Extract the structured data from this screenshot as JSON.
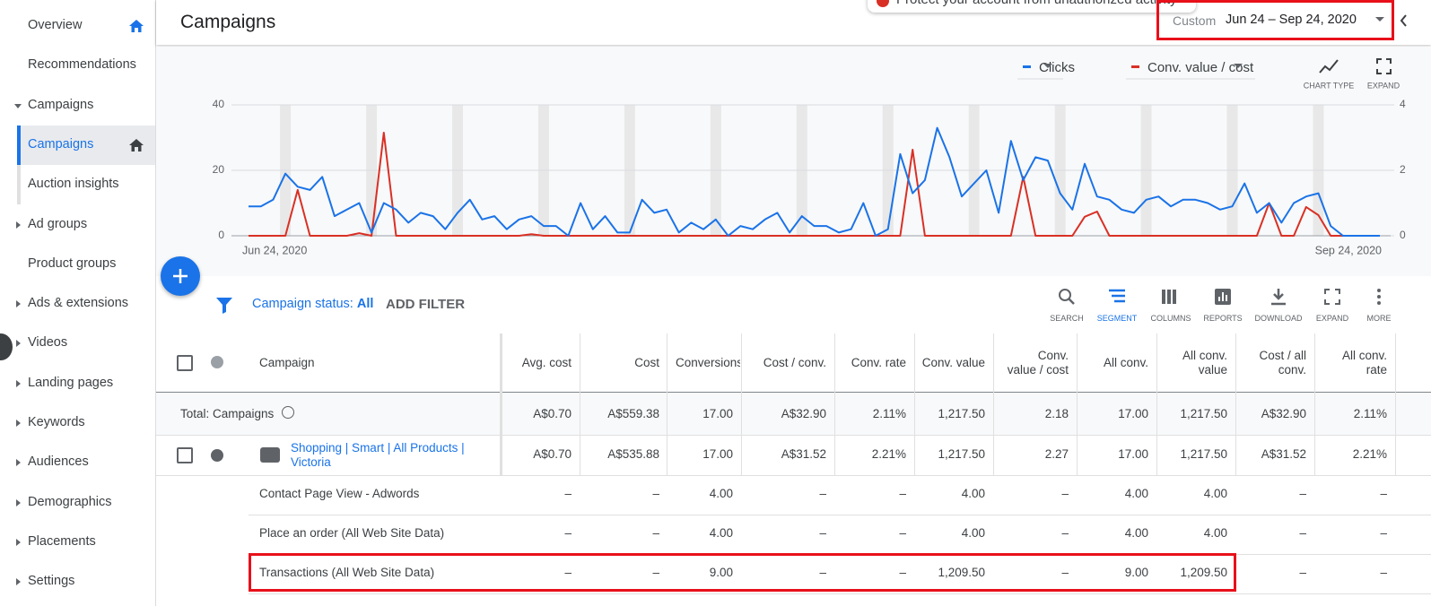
{
  "sidebar": {
    "items": [
      "Overview",
      "Recommendations",
      "Campaigns",
      "Campaigns",
      "Auction insights",
      "Ad groups",
      "Product groups",
      "Ads & extensions",
      "Videos",
      "Landing pages",
      "Keywords",
      "Audiences",
      "Demographics",
      "Placements",
      "Settings"
    ]
  },
  "header": {
    "title": "Campaigns",
    "notification": "Protect your account from unauthorized activity",
    "date_prefix": "Custom",
    "date_range": "Jun 24 – Sep 24, 2020"
  },
  "chart_controls": {
    "chart_type": "CHART TYPE",
    "expand": "EXPAND"
  },
  "chart_data": {
    "type": "line",
    "categories": [
      "Jun 24, 2020",
      null,
      null,
      null,
      null,
      null,
      null,
      null,
      null,
      null,
      null,
      null,
      null,
      null,
      null,
      null,
      null,
      null,
      null,
      null,
      null,
      null,
      null,
      null,
      null,
      null,
      null,
      null,
      null,
      null,
      null,
      null,
      null,
      null,
      null,
      null,
      null,
      null,
      null,
      null,
      null,
      null,
      null,
      null,
      null,
      null,
      null,
      null,
      null,
      null,
      null,
      null,
      null,
      null,
      null,
      null,
      null,
      null,
      null,
      null,
      null,
      null,
      null,
      null,
      null,
      null,
      null,
      null,
      null,
      null,
      null,
      null,
      null,
      null,
      null,
      null,
      null,
      null,
      null,
      null,
      null,
      null,
      null,
      null,
      null,
      null,
      null,
      null,
      null,
      null,
      null,
      null,
      "Sep 24, 2020"
    ],
    "series": [
      {
        "name": "Clicks",
        "color": "#1a73e8",
        "values": [
          9,
          9,
          11,
          19,
          15,
          14,
          18,
          6,
          8,
          10,
          1,
          10,
          8,
          4,
          7,
          6,
          2,
          7,
          11,
          5,
          6,
          2,
          5,
          6,
          3,
          3,
          0,
          10,
          2,
          6,
          1,
          1,
          11,
          7,
          8,
          1,
          4,
          2,
          5,
          0,
          3,
          2,
          5,
          7,
          1,
          6,
          3,
          3,
          1,
          2,
          10,
          0,
          2,
          25,
          13,
          17,
          33,
          24,
          12,
          16,
          20,
          7,
          29,
          17,
          24,
          23,
          13,
          8,
          22,
          12,
          11,
          8,
          7,
          11,
          12,
          9,
          11,
          11,
          10,
          8,
          9,
          16,
          7,
          10,
          4,
          10,
          12,
          13,
          3,
          0,
          0,
          0,
          0
        ]
      },
      {
        "name": "Conv. value / cost",
        "color": "#d93025",
        "axis": "y2",
        "values": [
          0,
          0,
          0,
          0,
          1.4,
          0,
          0,
          0,
          0,
          0.08,
          0,
          3.15,
          0,
          0,
          0,
          0,
          0,
          0,
          0,
          0,
          0,
          0,
          0,
          0.05,
          0,
          0,
          0,
          0,
          0,
          0,
          0,
          0,
          0,
          0,
          0,
          0,
          0,
          0,
          0,
          0,
          0,
          0,
          0,
          0,
          0,
          0,
          0,
          0,
          0,
          0,
          0,
          0,
          0,
          0,
          2.63,
          0,
          0,
          0,
          0,
          0,
          0,
          0,
          0,
          1.8,
          0,
          0,
          0,
          0,
          0.58,
          0.74,
          0,
          0,
          0,
          0,
          0,
          0,
          0,
          0,
          0,
          0,
          0,
          0,
          0,
          1.0,
          0,
          0,
          0.88,
          0.63,
          0,
          0,
          0,
          0,
          0
        ]
      }
    ],
    "ylim": [
      0,
      40
    ],
    "yticks": [
      0,
      20,
      40
    ],
    "y2lim": [
      0,
      4
    ],
    "y2ticks": [
      0,
      2,
      4
    ],
    "grid": true
  },
  "toolbar": {
    "status_label": "Campaign status:",
    "status_value": "All",
    "add_filter": "ADD FILTER",
    "actions": [
      "SEARCH",
      "SEGMENT",
      "COLUMNS",
      "REPORTS",
      "DOWNLOAD",
      "EXPAND",
      "MORE"
    ]
  },
  "table": {
    "columns": [
      "Campaign",
      "Avg. cost",
      "Cost",
      "Conversions",
      "Cost / conv.",
      "Conv. rate",
      "Conv. value",
      "Conv. value / cost",
      "All conv.",
      "All conv. value",
      "Cost / all conv.",
      "All conv. rate"
    ],
    "total": {
      "label": "Total: Campaigns",
      "values": [
        "A$0.70",
        "A$559.38",
        "17.00",
        "A$32.90",
        "2.11%",
        "1,217.50",
        "2.18",
        "17.00",
        "1,217.50",
        "A$32.90",
        "2.11%"
      ]
    },
    "rows": [
      {
        "name": "Shopping | Smart | All Products | Victoria",
        "values": [
          "A$0.70",
          "A$535.88",
          "17.00",
          "A$31.52",
          "2.21%",
          "1,217.50",
          "2.27",
          "17.00",
          "1,217.50",
          "A$31.52",
          "2.21%"
        ]
      },
      {
        "name": "Contact Page View - Adwords",
        "values": [
          "–",
          "–",
          "4.00",
          "–",
          "–",
          "4.00",
          "–",
          "4.00",
          "4.00",
          "–",
          "–"
        ]
      },
      {
        "name": "Place an order (All Web Site Data)",
        "values": [
          "–",
          "–",
          "4.00",
          "–",
          "–",
          "4.00",
          "–",
          "4.00",
          "4.00",
          "–",
          "–"
        ]
      },
      {
        "name": "Transactions (All Web Site Data)",
        "values": [
          "–",
          "–",
          "9.00",
          "–",
          "–",
          "1,209.50",
          "–",
          "9.00",
          "1,209.50",
          "–",
          "–"
        ]
      }
    ]
  }
}
